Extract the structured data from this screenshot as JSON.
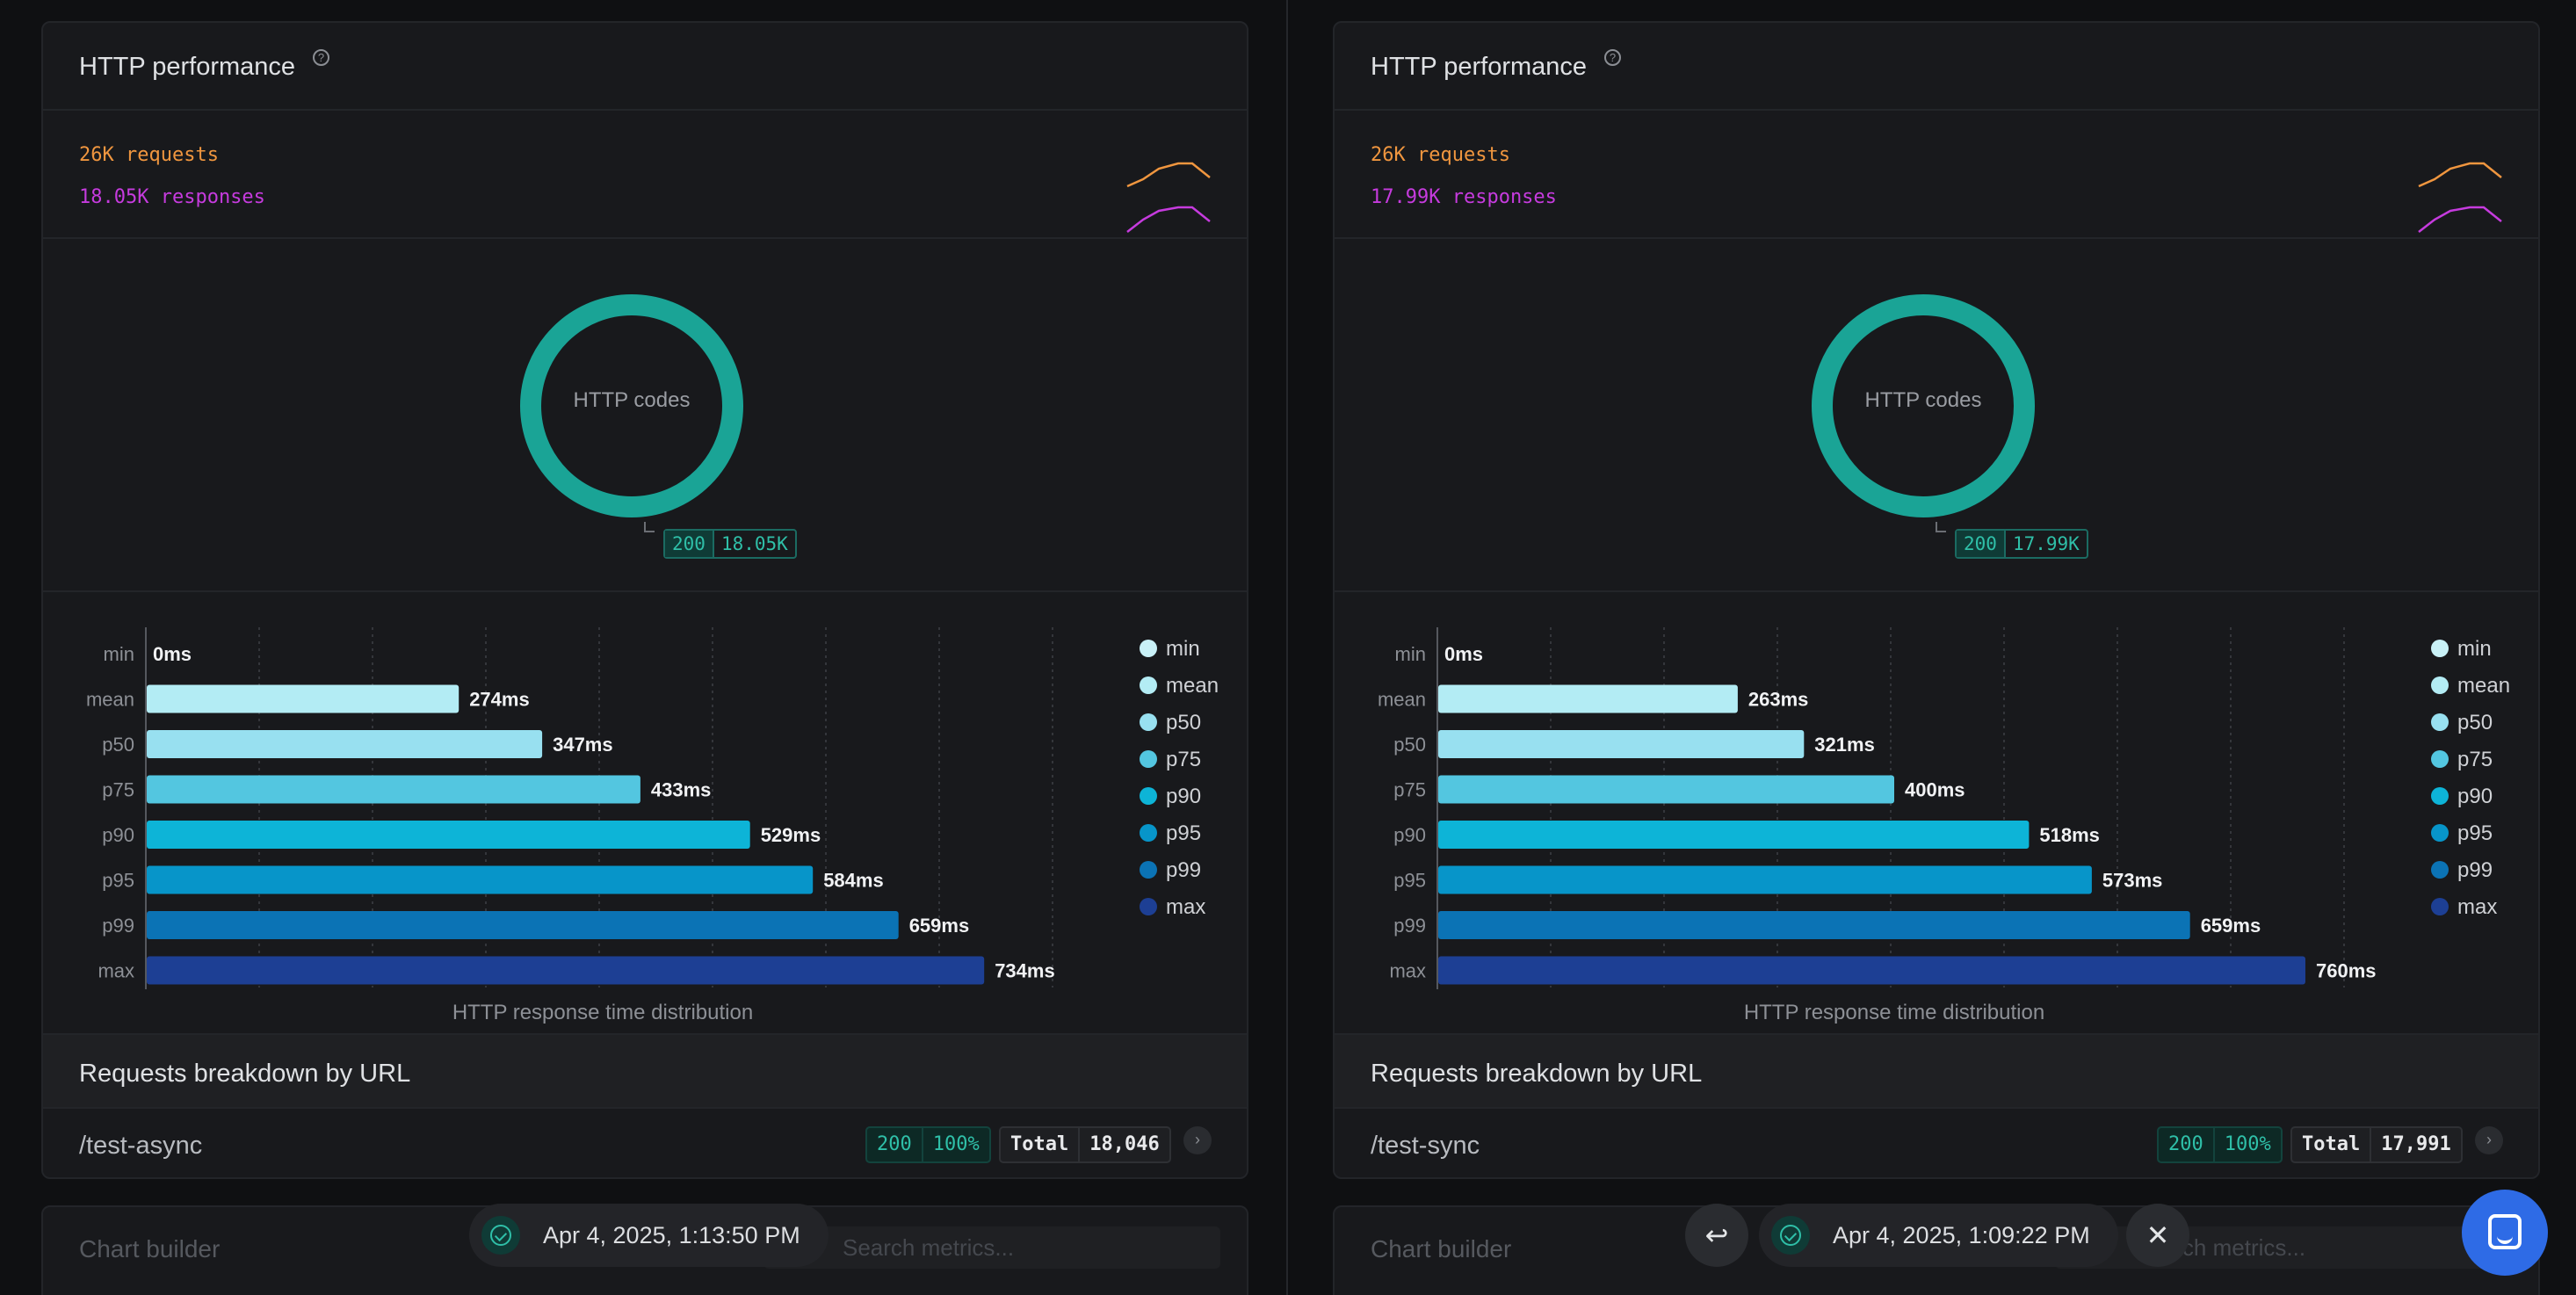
{
  "panels": [
    {
      "id": "left",
      "title": "HTTP performance",
      "requests_label": "26K requests",
      "responses_label": "18.05K responses",
      "donut_label": "HTTP codes",
      "status_code": "200",
      "status_count": "18.05K",
      "latency": {
        "type": "bar",
        "categories": [
          "min",
          "mean",
          "p50",
          "p75",
          "p90",
          "p95",
          "p99",
          "max"
        ],
        "values": [
          0,
          274,
          347,
          433,
          529,
          584,
          659,
          734
        ],
        "value_labels": [
          "0ms",
          "274ms",
          "347ms",
          "433ms",
          "529ms",
          "584ms",
          "659ms",
          "734ms"
        ],
        "xlabel": "HTTP response time distribution",
        "xlim": [
          0,
          800
        ]
      },
      "breakdown_title": "Requests breakdown by URL",
      "url": "/test-async",
      "url_status_code": "200",
      "url_status_pct": "100%",
      "total_label": "Total",
      "total_value": "18,046",
      "chart_builder": "Chart builder",
      "search_placeholder": "Search metrics...",
      "timestamp": "Apr 4, 2025, 1:13:50 PM"
    },
    {
      "id": "right",
      "title": "HTTP performance",
      "requests_label": "26K requests",
      "responses_label": "17.99K responses",
      "donut_label": "HTTP codes",
      "status_code": "200",
      "status_count": "17.99K",
      "latency": {
        "type": "bar",
        "categories": [
          "min",
          "mean",
          "p50",
          "p75",
          "p90",
          "p95",
          "p99",
          "max"
        ],
        "values": [
          0,
          263,
          321,
          400,
          518,
          573,
          659,
          760
        ],
        "value_labels": [
          "0ms",
          "263ms",
          "321ms",
          "400ms",
          "518ms",
          "573ms",
          "659ms",
          "760ms"
        ],
        "xlabel": "HTTP response time distribution",
        "xlim": [
          0,
          800
        ]
      },
      "breakdown_title": "Requests breakdown by URL",
      "url": "/test-sync",
      "url_status_code": "200",
      "url_status_pct": "100%",
      "total_label": "Total",
      "total_value": "17,991",
      "chart_builder": "Chart builder",
      "search_placeholder": "Search metrics...",
      "timestamp": "Apr 4, 2025, 1:09:22 PM"
    }
  ],
  "chart_data": [
    {
      "type": "bar",
      "categories": [
        "min",
        "mean",
        "p50",
        "p75",
        "p90",
        "p95",
        "p99",
        "max"
      ],
      "values": [
        0,
        274,
        347,
        433,
        529,
        584,
        659,
        734
      ],
      "xlabel": "HTTP response time distribution",
      "legend": "right",
      "grid": true
    },
    {
      "type": "bar",
      "categories": [
        "min",
        "mean",
        "p50",
        "p75",
        "p90",
        "p95",
        "p99",
        "max"
      ],
      "values": [
        0,
        263,
        321,
        400,
        518,
        573,
        659,
        760
      ],
      "xlabel": "HTTP response time distribution",
      "legend": "right",
      "grid": true
    }
  ],
  "colors": {
    "requests": "#f0963f",
    "responses": "#c63bde",
    "donut": "#1aa496",
    "bars": [
      "#c9f1f7",
      "#b3ecf4",
      "#98e0f0",
      "#53c6e0",
      "#0db4d7",
      "#0795c9",
      "#0b73b5",
      "#1d3f94"
    ]
  },
  "icons": {
    "help": "question-circle-icon",
    "expand": "chevron-right-icon",
    "success": "check-circle-icon",
    "undo": "return-arrow-icon",
    "close": "close-icon",
    "chat": "chat-icon"
  }
}
